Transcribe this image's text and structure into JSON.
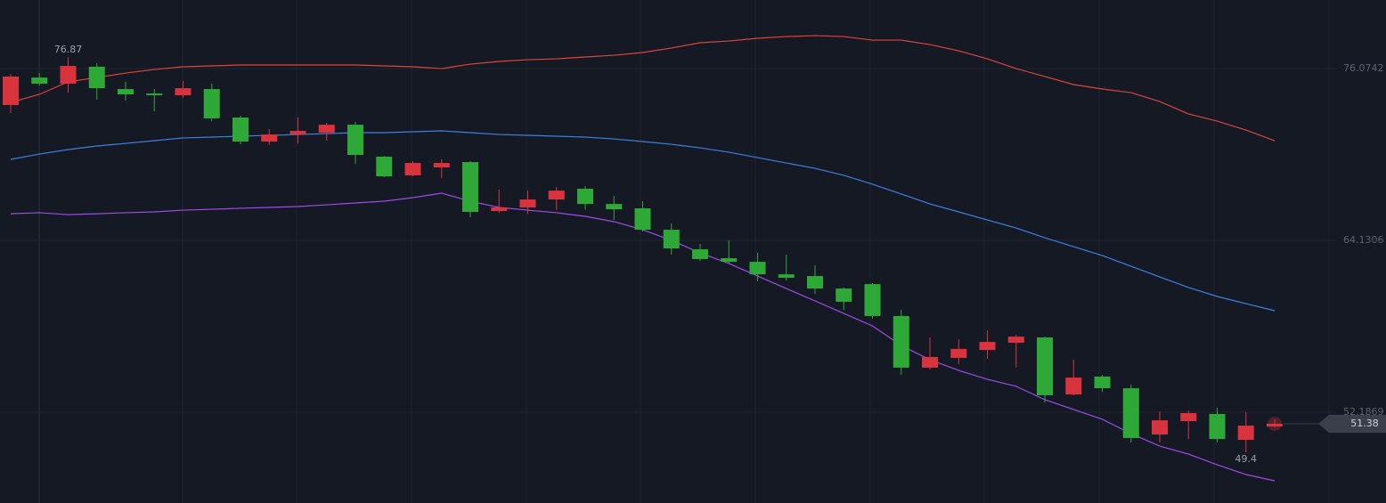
{
  "chart_data": {
    "type": "candlestick",
    "up_color": "#d9343d",
    "down_color": "#2ea836",
    "ylim": [
      45.87,
      80.84
    ],
    "yticks": [
      52.1869,
      64.1306,
      76.0742
    ],
    "grid": true,
    "open": [
      73.54,
      75.45,
      75.02,
      76.2,
      74.65,
      74.34,
      74.22,
      74.65,
      72.67,
      71.0,
      71.49,
      71.62,
      72.17,
      69.95,
      68.65,
      69.2,
      69.57,
      66.17,
      66.42,
      66.97,
      67.72,
      66.66,
      66.36,
      64.87,
      63.51,
      62.89,
      62.64,
      61.77,
      61.65,
      60.78,
      61.09,
      58.87,
      55.28,
      55.96,
      56.51,
      57.01,
      57.38,
      53.42,
      54.66,
      53.85,
      50.63,
      51.56,
      52.06,
      50.26,
      51.19
    ],
    "high": [
      75.7,
      75.76,
      76.87,
      76.45,
      75.15,
      74.65,
      75.21,
      75.02,
      72.79,
      71.86,
      72.67,
      72.3,
      72.36,
      70.01,
      69.64,
      69.76,
      69.64,
      67.66,
      67.59,
      67.84,
      67.9,
      67.22,
      66.85,
      65.3,
      63.88,
      64.13,
      63.26,
      63.14,
      62.39,
      60.85,
      61.16,
      59.3,
      57.38,
      57.26,
      57.88,
      57.57,
      57.44,
      55.83,
      54.78,
      54.1,
      52.24,
      52.3,
      52.49,
      52.18,
      51.69
    ],
    "low": [
      72.98,
      74.9,
      74.4,
      73.91,
      73.85,
      73.1,
      74.03,
      72.42,
      70.81,
      70.75,
      70.87,
      71.06,
      69.45,
      68.52,
      68.58,
      68.46,
      65.74,
      66.05,
      65.98,
      66.23,
      66.29,
      65.55,
      64.75,
      63.14,
      62.7,
      62.52,
      61.28,
      61.34,
      60.41,
      59.3,
      58.68,
      54.78,
      55.15,
      55.52,
      55.89,
      55.28,
      52.86,
      53.36,
      53.6,
      50.08,
      50.08,
      50.32,
      50.08,
      49.4,
      51.13
    ],
    "close": [
      75.52,
      75.02,
      76.26,
      74.71,
      74.28,
      74.22,
      74.71,
      72.61,
      71.0,
      71.49,
      71.74,
      72.17,
      70.07,
      68.58,
      69.51,
      69.51,
      66.11,
      66.42,
      66.97,
      67.59,
      66.66,
      66.29,
      64.87,
      63.57,
      62.83,
      62.64,
      61.77,
      61.53,
      60.78,
      59.86,
      58.87,
      55.28,
      56.02,
      56.58,
      57.07,
      57.44,
      53.36,
      54.59,
      53.85,
      50.39,
      51.62,
      52.12,
      50.32,
      51.25,
      51.38
    ],
    "series": [
      {
        "color": "#d9463c",
        "values": [
          73.72,
          74.28,
          75.15,
          75.45,
          75.76,
          76.01,
          76.2,
          76.26,
          76.32,
          76.32,
          76.32,
          76.32,
          76.32,
          76.26,
          76.2,
          76.07,
          76.38,
          76.57,
          76.69,
          76.75,
          76.88,
          77.0,
          77.19,
          77.5,
          77.87,
          77.99,
          78.18,
          78.3,
          78.36,
          78.3,
          78.05,
          78.05,
          77.74,
          77.31,
          76.75,
          76.07,
          75.52,
          74.96,
          74.65,
          74.4,
          73.78,
          72.92,
          72.42,
          71.8,
          71.06
        ]
      },
      {
        "color": "#3f7fe0",
        "values": [
          69.76,
          70.13,
          70.44,
          70.69,
          70.87,
          71.06,
          71.25,
          71.31,
          71.37,
          71.43,
          71.49,
          71.55,
          71.62,
          71.62,
          71.68,
          71.74,
          71.62,
          71.49,
          71.43,
          71.37,
          71.31,
          71.18,
          71.0,
          70.81,
          70.56,
          70.26,
          69.88,
          69.51,
          69.14,
          68.65,
          68.03,
          67.35,
          66.66,
          66.11,
          65.55,
          64.99,
          64.31,
          63.69,
          63.07,
          62.33,
          61.59,
          60.85,
          60.23,
          59.73,
          59.24
        ]
      },
      {
        "color": "#9b4de8",
        "values": [
          65.98,
          66.05,
          65.92,
          65.98,
          66.05,
          66.11,
          66.23,
          66.29,
          66.36,
          66.42,
          66.48,
          66.6,
          66.73,
          66.85,
          67.1,
          67.41,
          66.85,
          66.42,
          66.23,
          66.05,
          65.8,
          65.43,
          64.87,
          64.13,
          63.26,
          62.52,
          61.65,
          60.78,
          59.92,
          59.05,
          58.18,
          56.82,
          55.83,
          55.09,
          54.47,
          53.98,
          53.05,
          52.37,
          51.69,
          50.69,
          49.83,
          49.27,
          48.53,
          47.85,
          47.41
        ]
      }
    ]
  }
}
